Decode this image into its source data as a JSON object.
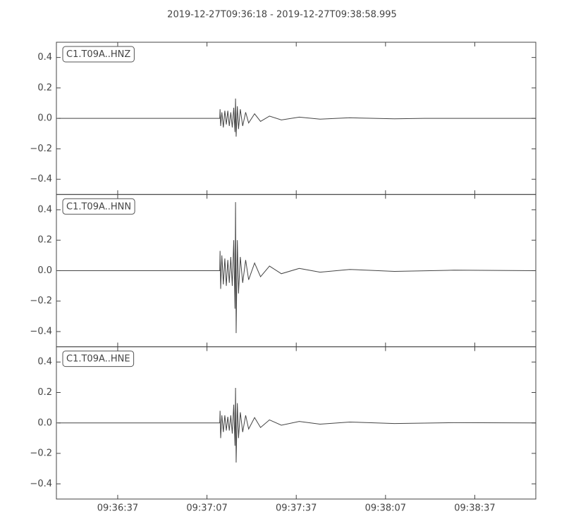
{
  "chart_data": [
    {
      "type": "line",
      "title": "2019-12-27T09:36:18  -  2019-12-27T09:38:58.995",
      "label": "C1.T09A..HNZ",
      "color": "#444444",
      "x": [
        34577,
        34631.3,
        34631.4,
        34631.6,
        34632,
        34632.5,
        34633,
        34633.5,
        34634,
        34634.5,
        34635,
        34635.5,
        34636,
        34636.4,
        34636.6,
        34636.8,
        34637.2,
        34637.6,
        34638.2,
        34639,
        34640,
        34641,
        34643,
        34645,
        34648,
        34652,
        34658,
        34665,
        34675,
        34690,
        34700,
        34737.5
      ],
      "values": [
        0,
        0,
        0.06,
        -0.05,
        0.04,
        -0.06,
        0.05,
        -0.04,
        0.05,
        -0.05,
        0.04,
        -0.06,
        0.07,
        -0.09,
        0.13,
        -0.12,
        0.08,
        -0.07,
        0.06,
        -0.05,
        0.04,
        -0.03,
        0.03,
        -0.02,
        0.015,
        -0.01,
        0.008,
        -0.005,
        0.004,
        -0.003,
        0,
        0
      ],
      "xlim": [
        34576.4,
        34737.5
      ],
      "ylim": [
        -0.5,
        0.5
      ],
      "yticks": [
        {
          "value": -0.4,
          "label": "−0.4"
        },
        {
          "value": -0.2,
          "label": "−0.2"
        },
        {
          "value": 0,
          "label": "0.0"
        },
        0.2,
        0.4
      ],
      "xticks": [
        34597,
        34627,
        34657,
        34687,
        34717
      ]
    },
    {
      "type": "line",
      "label": "C1.T09A..HNN",
      "color": "#444444",
      "x": [
        34577,
        34631.3,
        34631.4,
        34631.6,
        34632,
        34632.5,
        34633,
        34633.5,
        34634,
        34634.5,
        34635,
        34635.5,
        34636,
        34636.4,
        34636.6,
        34636.8,
        34637.2,
        34637.6,
        34638.2,
        34639,
        34640,
        34641,
        34643,
        34645,
        34648,
        34652,
        34658,
        34665,
        34675,
        34690,
        34710,
        34737.5
      ],
      "values": [
        0,
        0,
        0.13,
        -0.12,
        0.1,
        -0.09,
        0.08,
        -0.1,
        0.07,
        -0.08,
        0.09,
        -0.1,
        0.2,
        -0.25,
        0.45,
        -0.41,
        0.2,
        -0.15,
        0.09,
        -0.08,
        0.07,
        -0.06,
        0.05,
        -0.04,
        0.03,
        -0.02,
        0.015,
        -0.01,
        0.008,
        -0.005,
        0.003,
        0
      ],
      "xlim": [
        34576.4,
        34737.5
      ],
      "ylim": [
        -0.5,
        0.5
      ],
      "yticks": [
        {
          "value": -0.4,
          "label": "−0.4"
        },
        {
          "value": -0.2,
          "label": "−0.2"
        },
        {
          "value": 0,
          "label": "0.0"
        },
        0.2,
        0.4
      ],
      "xticks": [
        34597,
        34627,
        34657,
        34687,
        34717
      ]
    },
    {
      "type": "line",
      "label": "C1.T09A..HNE",
      "color": "#444444",
      "x": [
        34577,
        34631.3,
        34631.4,
        34631.6,
        34632,
        34632.5,
        34633,
        34633.5,
        34634,
        34634.5,
        34635,
        34635.5,
        34636,
        34636.4,
        34636.6,
        34636.8,
        34637.2,
        34637.6,
        34638.2,
        34639,
        34640,
        34641,
        34643,
        34645,
        34648,
        34652,
        34658,
        34665,
        34675,
        34690,
        34710,
        34737.5
      ],
      "values": [
        0,
        0,
        0.08,
        -0.1,
        0.05,
        -0.06,
        0.05,
        -0.05,
        0.04,
        -0.05,
        0.05,
        -0.07,
        0.12,
        -0.15,
        0.23,
        -0.26,
        0.13,
        -0.1,
        0.07,
        -0.06,
        0.05,
        -0.04,
        0.035,
        -0.03,
        0.02,
        -0.015,
        0.01,
        -0.008,
        0.006,
        -0.004,
        0.002,
        0
      ],
      "xlim": [
        34576.4,
        34737.5
      ],
      "ylim": [
        -0.5,
        0.5
      ],
      "yticks": [
        {
          "value": -0.4,
          "label": "−0.4"
        },
        {
          "value": -0.2,
          "label": "−0.2"
        },
        {
          "value": 0,
          "label": "0.0"
        },
        0.2,
        0.4
      ],
      "xticks": [
        {
          "value": 34597,
          "label": "09:36:37"
        },
        {
          "value": 34627,
          "label": "09:37:07"
        },
        {
          "value": 34657,
          "label": "09:37:37"
        },
        {
          "value": 34687,
          "label": "09:38:07"
        },
        {
          "value": 34717,
          "label": "09:38:37"
        }
      ]
    }
  ]
}
